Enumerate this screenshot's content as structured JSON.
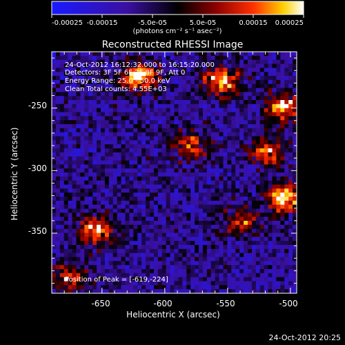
{
  "colorbar": {
    "ticks": [
      "-0.00025",
      "-0.00015",
      "-5.0e-05",
      "5.0e-05",
      "0.00015",
      "0.00025"
    ],
    "units": "(photons cm⁻² s⁻¹ asec⁻²)"
  },
  "chart": {
    "title": "Reconstructed RHESSI Image",
    "info_lines": [
      "24-Oct-2012 16:12:32.000 to 16:15:20.000",
      "Detectors: 3F 5F 6F 7F 8F 9F, Att 0",
      "Energy Range: 25.0 - 50.0 keV",
      "Clean    Total counts: 4.55E+03"
    ],
    "peak_label": "Position of Peak = [-619,-224]",
    "xlabel": "Heliocentric X (arcsec)",
    "ylabel": "Heliocentric Y (arcsec)",
    "xticks": [
      "-650",
      "-600",
      "-550",
      "-500"
    ],
    "yticks": [
      "-250",
      "-300",
      "-350"
    ]
  },
  "footer": {
    "timestamp": "24-Oct-2012 20:25"
  },
  "chart_data": {
    "type": "heatmap",
    "title": "Reconstructed RHESSI Image",
    "xlabel": "Heliocentric X (arcsec)",
    "ylabel": "Heliocentric Y (arcsec)",
    "xlim": [
      -690,
      -495
    ],
    "ylim": [
      -398,
      -205
    ],
    "clim": [
      -0.00025,
      0.00025
    ],
    "colormap": "blue-black-red-yellow-white",
    "peak": [
      -619,
      -224
    ],
    "hot_regions": [
      {
        "x": -620,
        "y": -225,
        "level": 0.00022
      },
      {
        "x": -555,
        "y": -228,
        "level": 0.0002
      },
      {
        "x": -505,
        "y": -250,
        "level": 0.00022
      },
      {
        "x": -505,
        "y": -322,
        "level": 0.00025
      },
      {
        "x": -655,
        "y": -348,
        "level": 0.00018
      },
      {
        "x": -580,
        "y": -280,
        "level": 0.00012
      },
      {
        "x": -520,
        "y": -285,
        "level": 0.00015
      },
      {
        "x": -675,
        "y": -385,
        "level": 0.00012
      },
      {
        "x": -540,
        "y": -340,
        "level": 0.0001
      }
    ]
  }
}
